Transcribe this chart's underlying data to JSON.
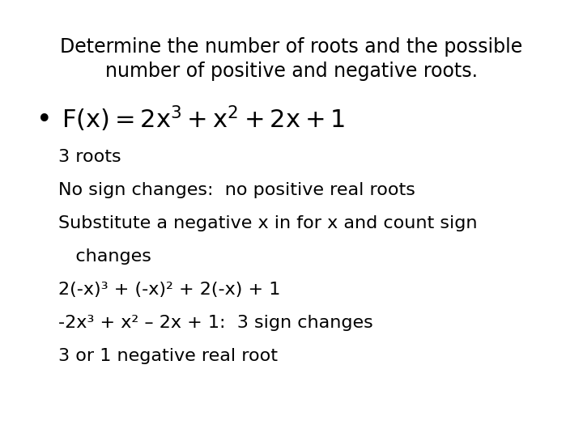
{
  "background_color": "#ffffff",
  "title_line1": "Determine the number of roots and the possible",
  "title_line2": "number of positive and negative roots.",
  "title_fontsize": 17,
  "title_color": "#000000",
  "bullet_fontsize": 22,
  "body_lines": [
    "3 roots",
    "No sign changes:  no positive real roots",
    "Substitute a negative x in for x and count sign",
    "   changes",
    "2(-x)³ + (-x)² + 2(-x) + 1",
    "-2x³ + x² – 2x + 1:  3 sign changes",
    "3 or 1 negative real root"
  ],
  "body_fontsize": 16,
  "body_color": "#000000"
}
